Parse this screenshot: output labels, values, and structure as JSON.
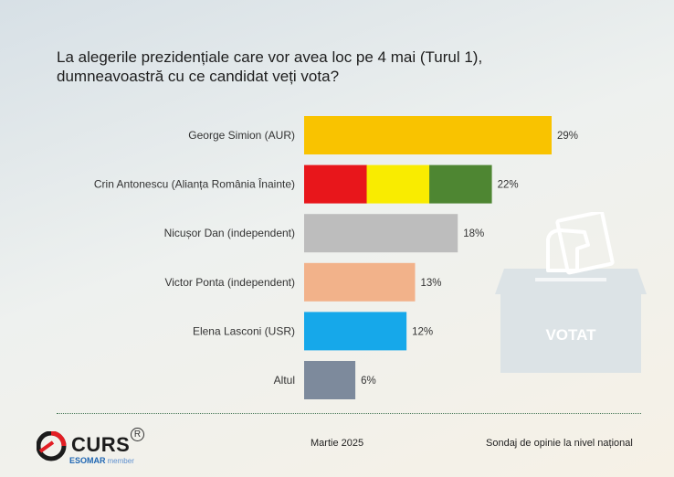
{
  "title_line1": "La alegerile prezidențiale care vor avea loc pe 4 mai (Turul 1),",
  "title_line2": "dumneavoastră cu ce candidat veți vota?",
  "chart_data": {
    "type": "bar",
    "orientation": "horizontal",
    "title": "La alegerile prezidențiale care vor avea loc pe 4 mai (Turul 1), dumneavoastră cu ce candidat veți vota?",
    "categories": [
      "George Simion (AUR)",
      "Crin Antonescu (Alianța România Înainte)",
      "Nicușor Dan (independent)",
      "Victor Ponta (independent)",
      "Elena Lasconi (USR)",
      "Altul"
    ],
    "values": [
      29,
      22,
      18,
      13,
      12,
      6
    ],
    "value_labels": [
      "29%",
      "22%",
      "18%",
      "13%",
      "12%",
      "6%"
    ],
    "colors": [
      [
        "#f9c300"
      ],
      [
        "#e8161b",
        "#f9ec00",
        "#4e8632"
      ],
      [
        "#bdbdbd"
      ],
      [
        "#f2b28a"
      ],
      [
        "#16a8ea"
      ],
      [
        "#7d8a9c"
      ]
    ],
    "xlim": [
      0,
      30
    ],
    "grid": false,
    "legend": "none"
  },
  "ballot": {
    "label": "VOTAT",
    "icon": "ballot-box-icon"
  },
  "footer": {
    "logo_text": "CURS",
    "logo_sub": "ESOMAR",
    "logo_sub2": "member",
    "date": "Martie 2025",
    "note": "Sondaj de opinie la nivel național"
  }
}
